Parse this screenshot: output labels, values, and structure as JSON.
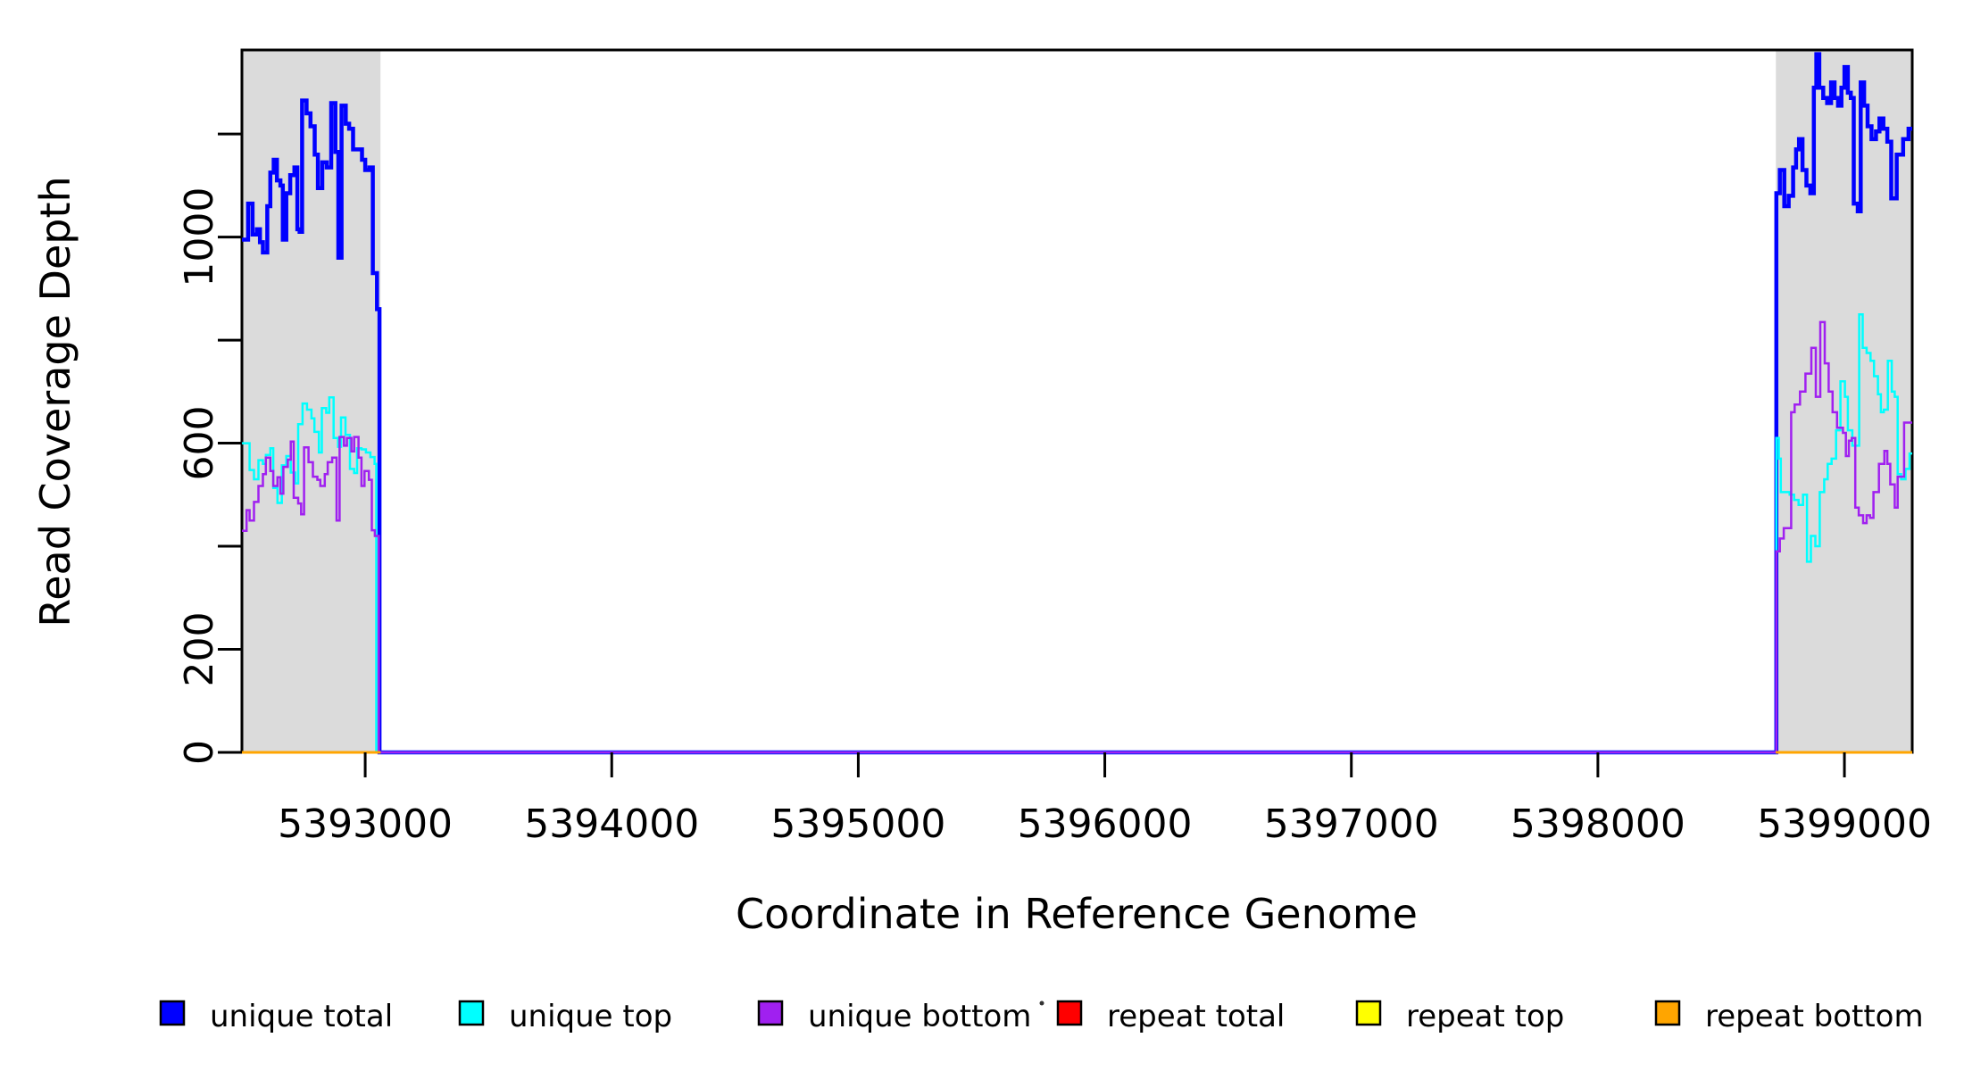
{
  "chart_data": {
    "type": "line",
    "subtype": "step-after",
    "title": "",
    "xlabel": "Coordinate in Reference Genome",
    "ylabel": "Read Coverage Depth",
    "xlim": [
      5392500,
      5399275
    ],
    "ylim": [
      0,
      1363
    ],
    "grid": false,
    "plot_bg": "#ffffff",
    "region_color": "#dbdbdb",
    "highlight_regions": [
      {
        "name": "left-amplicon",
        "x0": 5392500,
        "x1": 5393062
      },
      {
        "name": "right-amplicon",
        "x0": 5398722,
        "x1": 5399275
      }
    ],
    "x_ticks": [
      {
        "v": 5393000,
        "label": "5393000"
      },
      {
        "v": 5394000,
        "label": "5394000"
      },
      {
        "v": 5395000,
        "label": "5395000"
      },
      {
        "v": 5396000,
        "label": "5396000"
      },
      {
        "v": 5397000,
        "label": "5397000"
      },
      {
        "v": 5398000,
        "label": "5398000"
      },
      {
        "v": 5399000,
        "label": "5399000"
      }
    ],
    "y_ticks": [
      {
        "v": 0,
        "label": "0"
      },
      {
        "v": 200,
        "label": "200"
      },
      {
        "v": 400,
        "label": ""
      },
      {
        "v": 600,
        "label": "600"
      },
      {
        "v": 800,
        "label": ""
      },
      {
        "v": 1000,
        "label": "1000"
      },
      {
        "v": 1200,
        "label": ""
      }
    ],
    "legend": {
      "position": "bottom",
      "entries": [
        {
          "label": "unique total",
          "color": "#0000ff"
        },
        {
          "label": "unique top",
          "color": "#00ffff"
        },
        {
          "label": "unique bottom",
          "color": "#a020f0"
        },
        {
          "label": "repeat total",
          "color": "#ff0000"
        },
        {
          "label": "repeat top",
          "color": "#ffff00"
        },
        {
          "label": "repeat bottom",
          "color": "#ffa500"
        }
      ]
    },
    "series": [
      {
        "name": "unique total",
        "color": "#0000ff",
        "lwd": 4.5,
        "segments": [
          [
            [
              5392500,
              995
            ],
            [
              5392525,
              1065
            ],
            [
              5392543,
              1005
            ],
            [
              5392561,
              1015
            ],
            [
              5392573,
              990
            ],
            [
              5392585,
              970
            ],
            [
              5392603,
              1060
            ],
            [
              5392615,
              1125
            ],
            [
              5392629,
              1150
            ],
            [
              5392642,
              1110
            ],
            [
              5392656,
              1100
            ],
            [
              5392666,
              995
            ],
            [
              5392680,
              1085
            ],
            [
              5392696,
              1120
            ],
            [
              5392713,
              1135
            ],
            [
              5392725,
              1015
            ],
            [
              5392734,
              1010
            ],
            [
              5392744,
              1265
            ],
            [
              5392762,
              1240
            ],
            [
              5392778,
              1215
            ],
            [
              5392795,
              1160
            ],
            [
              5392808,
              1095
            ],
            [
              5392826,
              1145
            ],
            [
              5392844,
              1135
            ],
            [
              5392862,
              1260
            ],
            [
              5392879,
              1165
            ],
            [
              5392891,
              960
            ],
            [
              5392904,
              1255
            ],
            [
              5392921,
              1220
            ],
            [
              5392935,
              1210
            ],
            [
              5392951,
              1170
            ],
            [
              5392969,
              1170
            ],
            [
              5392987,
              1150
            ],
            [
              5393000,
              1130
            ],
            [
              5393017,
              1135
            ],
            [
              5393031,
              930
            ],
            [
              5393048,
              860
            ],
            [
              5393058,
              0
            ],
            [
              5398724,
              1085
            ],
            [
              5398738,
              1130
            ],
            [
              5398756,
              1060
            ],
            [
              5398774,
              1080
            ],
            [
              5398792,
              1135
            ],
            [
              5398804,
              1170
            ],
            [
              5398816,
              1190
            ],
            [
              5398830,
              1130
            ],
            [
              5398846,
              1100
            ],
            [
              5398862,
              1085
            ],
            [
              5398876,
              1290
            ],
            [
              5398886,
              1355
            ],
            [
              5398898,
              1290
            ],
            [
              5398914,
              1270
            ],
            [
              5398930,
              1260
            ],
            [
              5398946,
              1300
            ],
            [
              5398960,
              1270
            ],
            [
              5398974,
              1255
            ],
            [
              5398988,
              1290
            ],
            [
              5399000,
              1330
            ],
            [
              5399014,
              1280
            ],
            [
              5399026,
              1270
            ],
            [
              5399038,
              1065
            ],
            [
              5399054,
              1050
            ],
            [
              5399066,
              1300
            ],
            [
              5399080,
              1255
            ],
            [
              5399094,
              1215
            ],
            [
              5399110,
              1190
            ],
            [
              5399128,
              1205
            ],
            [
              5399142,
              1230
            ],
            [
              5399158,
              1210
            ],
            [
              5399174,
              1185
            ],
            [
              5399190,
              1075
            ],
            [
              5399212,
              1160
            ],
            [
              5399238,
              1190
            ],
            [
              5399260,
              1210
            ],
            [
              5399275,
              1210
            ]
          ]
        ]
      },
      {
        "name": "unique top",
        "color": "#00ffff",
        "lwd": 2.5,
        "segments": [
          [
            [
              5392500,
              600
            ],
            [
              5392531,
              548
            ],
            [
              5392549,
              530
            ],
            [
              5392567,
              567
            ],
            [
              5392585,
              560
            ],
            [
              5392597,
              577
            ],
            [
              5392615,
              590
            ],
            [
              5392627,
              513
            ],
            [
              5392644,
              484
            ],
            [
              5392662,
              557
            ],
            [
              5392680,
              575
            ],
            [
              5392698,
              543
            ],
            [
              5392716,
              522
            ],
            [
              5392728,
              637
            ],
            [
              5392746,
              677
            ],
            [
              5392764,
              665
            ],
            [
              5392782,
              648
            ],
            [
              5392794,
              622
            ],
            [
              5392812,
              582
            ],
            [
              5392824,
              668
            ],
            [
              5392842,
              659
            ],
            [
              5392854,
              689
            ],
            [
              5392872,
              610
            ],
            [
              5392890,
              593
            ],
            [
              5392902,
              650
            ],
            [
              5392920,
              616
            ],
            [
              5392938,
              550
            ],
            [
              5392955,
              542
            ],
            [
              5392967,
              590
            ],
            [
              5392985,
              588
            ],
            [
              5393003,
              582
            ],
            [
              5393021,
              573
            ],
            [
              5393038,
              560
            ],
            [
              5393045,
              0
            ],
            [
              5398724,
              610
            ],
            [
              5398734,
              570
            ],
            [
              5398742,
              505
            ],
            [
              5398778,
              500
            ],
            [
              5398796,
              490
            ],
            [
              5398814,
              480
            ],
            [
              5398832,
              500
            ],
            [
              5398848,
              370
            ],
            [
              5398864,
              420
            ],
            [
              5398882,
              400
            ],
            [
              5398900,
              505
            ],
            [
              5398918,
              530
            ],
            [
              5398932,
              560
            ],
            [
              5398948,
              570
            ],
            [
              5398966,
              625
            ],
            [
              5398984,
              720
            ],
            [
              5399002,
              690
            ],
            [
              5399014,
              625
            ],
            [
              5399032,
              595
            ],
            [
              5399060,
              850
            ],
            [
              5399074,
              785
            ],
            [
              5399090,
              775
            ],
            [
              5399106,
              760
            ],
            [
              5399120,
              730
            ],
            [
              5399136,
              695
            ],
            [
              5399148,
              660
            ],
            [
              5399160,
              665
            ],
            [
              5399176,
              760
            ],
            [
              5399192,
              700
            ],
            [
              5399204,
              690
            ],
            [
              5399216,
              540
            ],
            [
              5399230,
              530
            ],
            [
              5399248,
              550
            ],
            [
              5399264,
              580
            ],
            [
              5399275,
              580
            ]
          ]
        ]
      },
      {
        "name": "unique bottom",
        "color": "#a020f0",
        "lwd": 2.5,
        "segments": [
          [
            [
              5392500,
              430
            ],
            [
              5392519,
              470
            ],
            [
              5392531,
              450
            ],
            [
              5392549,
              486
            ],
            [
              5392567,
              517
            ],
            [
              5392585,
              540
            ],
            [
              5392597,
              572
            ],
            [
              5392615,
              546
            ],
            [
              5392627,
              517
            ],
            [
              5392644,
              534
            ],
            [
              5392656,
              502
            ],
            [
              5392668,
              554
            ],
            [
              5392686,
              568
            ],
            [
              5392698,
              603
            ],
            [
              5392710,
              494
            ],
            [
              5392728,
              483
            ],
            [
              5392740,
              462
            ],
            [
              5392752,
              592
            ],
            [
              5392770,
              563
            ],
            [
              5392788,
              535
            ],
            [
              5392806,
              529
            ],
            [
              5392818,
              517
            ],
            [
              5392836,
              540
            ],
            [
              5392848,
              563
            ],
            [
              5392866,
              572
            ],
            [
              5392884,
              450
            ],
            [
              5392896,
              612
            ],
            [
              5392914,
              595
            ],
            [
              5392926,
              610
            ],
            [
              5392944,
              584
            ],
            [
              5392955,
              612
            ],
            [
              5392973,
              572
            ],
            [
              5392985,
              517
            ],
            [
              5392997,
              546
            ],
            [
              5393015,
              529
            ],
            [
              5393027,
              431
            ],
            [
              5393039,
              420
            ],
            [
              5393055,
              0
            ],
            [
              5398724,
              390
            ],
            [
              5398738,
              415
            ],
            [
              5398754,
              435
            ],
            [
              5398784,
              660
            ],
            [
              5398798,
              675
            ],
            [
              5398820,
              700
            ],
            [
              5398842,
              735
            ],
            [
              5398866,
              785
            ],
            [
              5398884,
              690
            ],
            [
              5398902,
              835
            ],
            [
              5398920,
              755
            ],
            [
              5398936,
              700
            ],
            [
              5398952,
              660
            ],
            [
              5398970,
              630
            ],
            [
              5398994,
              620
            ],
            [
              5399006,
              575
            ],
            [
              5399018,
              605
            ],
            [
              5399030,
              610
            ],
            [
              5399044,
              475
            ],
            [
              5399058,
              460
            ],
            [
              5399076,
              445
            ],
            [
              5399090,
              460
            ],
            [
              5399104,
              455
            ],
            [
              5399118,
              505
            ],
            [
              5399140,
              560
            ],
            [
              5399162,
              585
            ],
            [
              5399174,
              560
            ],
            [
              5399186,
              520
            ],
            [
              5399204,
              475
            ],
            [
              5399216,
              535
            ],
            [
              5399242,
              640
            ],
            [
              5399275,
              640
            ]
          ]
        ]
      },
      {
        "name": "repeat total",
        "color": "#ff0000",
        "lwd": 3,
        "segments": [
          [
            [
              5392500,
              0
            ],
            [
              5393062,
              0
            ]
          ],
          [
            [
              5398722,
              0
            ],
            [
              5399275,
              0
            ]
          ]
        ]
      },
      {
        "name": "repeat top",
        "color": "#ffff00",
        "lwd": 3,
        "segments": [
          [
            [
              5392500,
              0
            ],
            [
              5393062,
              0
            ]
          ],
          [
            [
              5398722,
              0
            ],
            [
              5399275,
              0
            ]
          ]
        ]
      },
      {
        "name": "repeat bottom",
        "color": "#ffa500",
        "lwd": 3,
        "segments": [
          [
            [
              5392500,
              0
            ],
            [
              5393062,
              0
            ]
          ],
          [
            [
              5398722,
              0
            ],
            [
              5399275,
              0
            ]
          ]
        ]
      }
    ]
  }
}
